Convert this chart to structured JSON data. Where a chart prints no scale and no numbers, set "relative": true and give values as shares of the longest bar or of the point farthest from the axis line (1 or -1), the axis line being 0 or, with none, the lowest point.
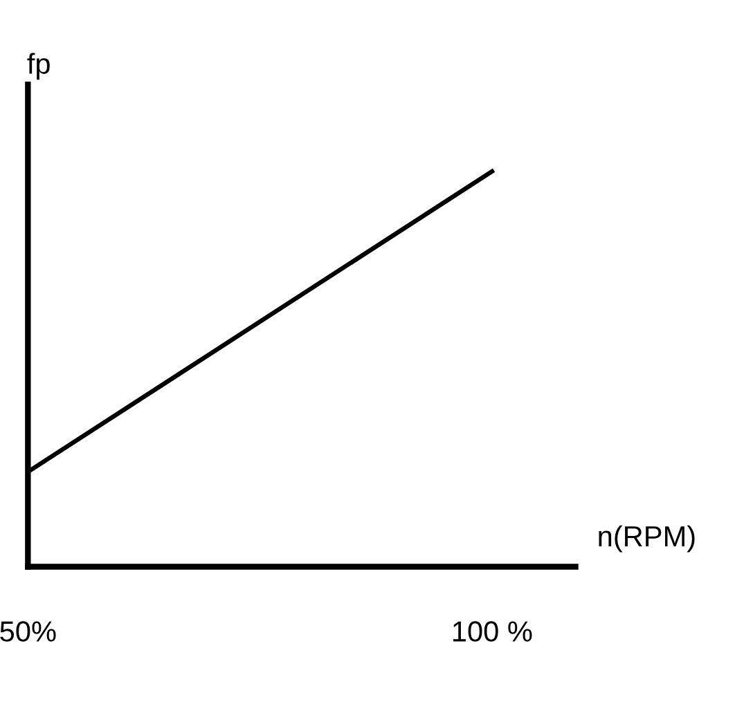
{
  "chart_data": {
    "type": "line",
    "xlabel": "n(RPM)",
    "ylabel": "fp",
    "relative": true,
    "x": [
      50,
      100
    ],
    "series": [
      {
        "color": "#000000",
        "values": [
          0.24,
          1
        ]
      }
    ],
    "xlim": [
      50,
      109
    ],
    "xticks": [
      {
        "value": 50,
        "label": "50%"
      },
      {
        "value": 100,
        "label": "100 %"
      }
    ],
    "grid": false,
    "legend": false,
    "marker": "none",
    "line_style": "solid"
  }
}
